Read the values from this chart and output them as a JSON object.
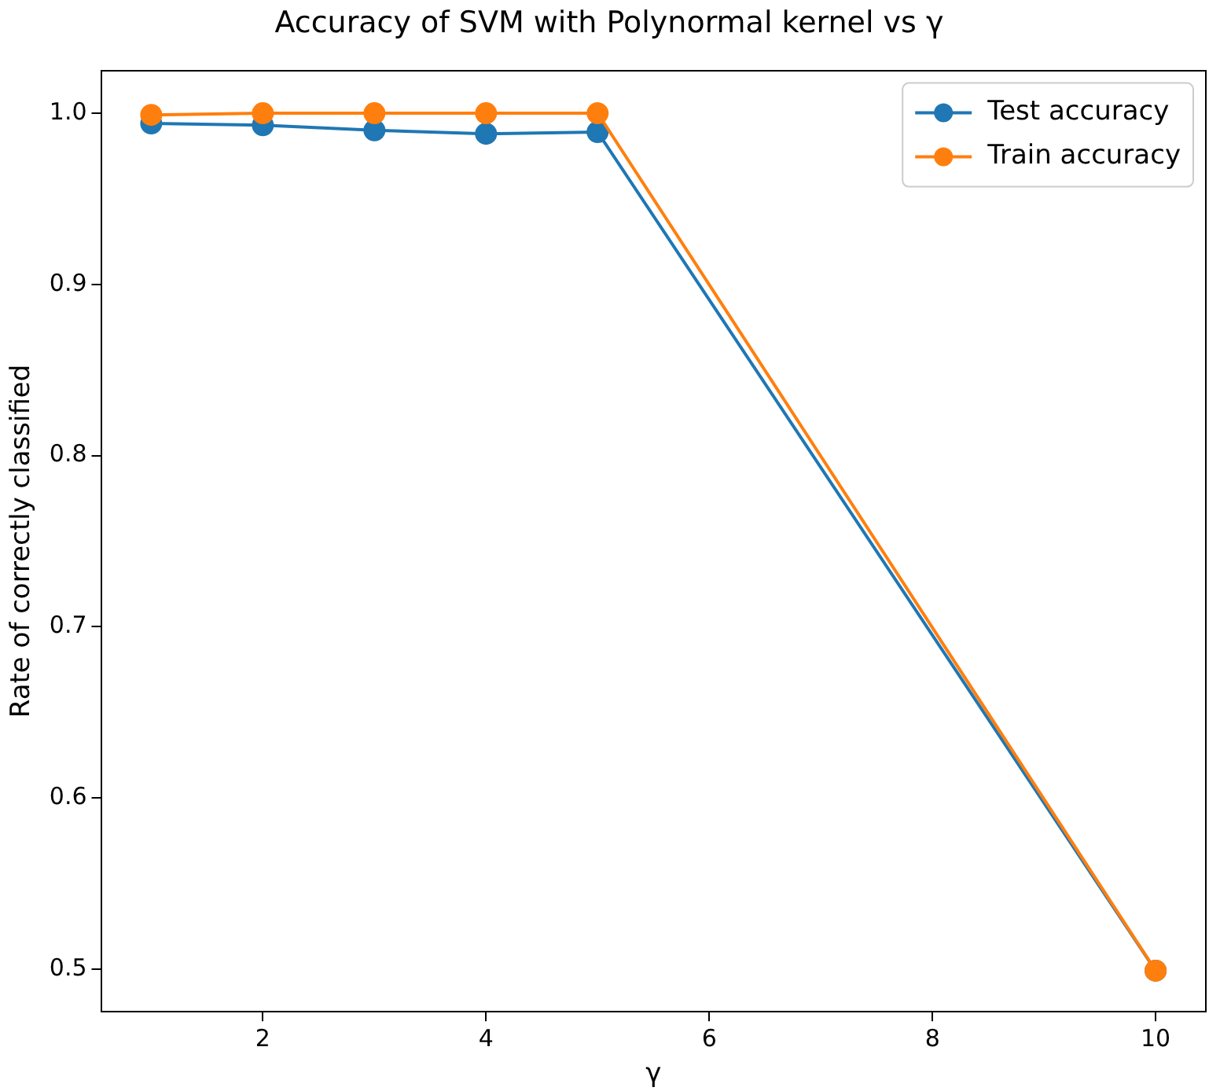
{
  "chart_data": {
    "type": "line",
    "title": "Accuracy of SVM with Polynormal kernel vs γ",
    "xlabel": "γ",
    "ylabel": "Rate of correctly classified",
    "x": [
      1,
      2,
      3,
      4,
      5,
      10
    ],
    "series": [
      {
        "name": "Test accuracy",
        "color": "#1f77b4",
        "values": [
          0.994,
          0.993,
          0.99,
          0.988,
          0.989,
          0.499
        ]
      },
      {
        "name": "Train accuracy",
        "color": "#ff7f0e",
        "values": [
          0.999,
          1.0,
          1.0,
          1.0,
          1.0,
          0.499
        ]
      }
    ],
    "xlim": [
      0.55,
      10.45
    ],
    "ylim": [
      0.475,
      1.025
    ],
    "xticks": [
      2,
      4,
      6,
      8,
      10
    ],
    "yticks": [
      0.5,
      0.6,
      0.7,
      0.8,
      0.9,
      {
        "value": 1,
        "label": "1.0"
      }
    ],
    "legend": "top right",
    "marker": "circle",
    "line_style": "solid",
    "grid": false
  }
}
